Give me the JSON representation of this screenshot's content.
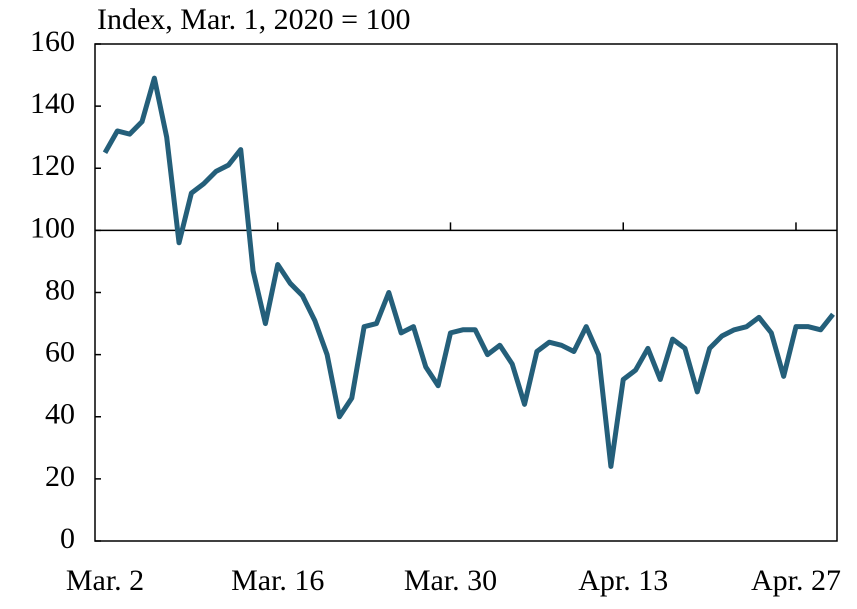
{
  "chart_data": {
    "type": "line",
    "title": "Index, Mar. 1, 2020 = 100",
    "categories": [
      "Mar. 2",
      null,
      null,
      null,
      null,
      null,
      null,
      null,
      null,
      null,
      null,
      null,
      null,
      null,
      "Mar. 16",
      null,
      null,
      null,
      null,
      null,
      null,
      null,
      null,
      null,
      null,
      null,
      null,
      null,
      "Mar. 30",
      null,
      null,
      null,
      null,
      null,
      null,
      null,
      null,
      null,
      null,
      null,
      null,
      null,
      "Apr. 13",
      null,
      null,
      null,
      null,
      null,
      null,
      null,
      null,
      null,
      null,
      null,
      null,
      null,
      "Apr. 27",
      null,
      null,
      null
    ],
    "series": [
      {
        "color": "#245f7a",
        "values": [
          125,
          132,
          131,
          135,
          149,
          130,
          96,
          112,
          115,
          119,
          121,
          126,
          87,
          70,
          89,
          83,
          79,
          71,
          60,
          40,
          46,
          69,
          70,
          80,
          67,
          69,
          56,
          50,
          67,
          68,
          68,
          60,
          63,
          57,
          44,
          61,
          64,
          63,
          61,
          69,
          60,
          24,
          52,
          55,
          62,
          52,
          65,
          62,
          48,
          62,
          66,
          68,
          69,
          72,
          67,
          53,
          69,
          69,
          68,
          73
        ]
      }
    ],
    "ylim": [
      0,
      160
    ],
    "yticks": [
      0,
      20,
      40,
      60,
      80,
      100,
      120,
      140,
      160
    ],
    "reference_line": 100
  }
}
